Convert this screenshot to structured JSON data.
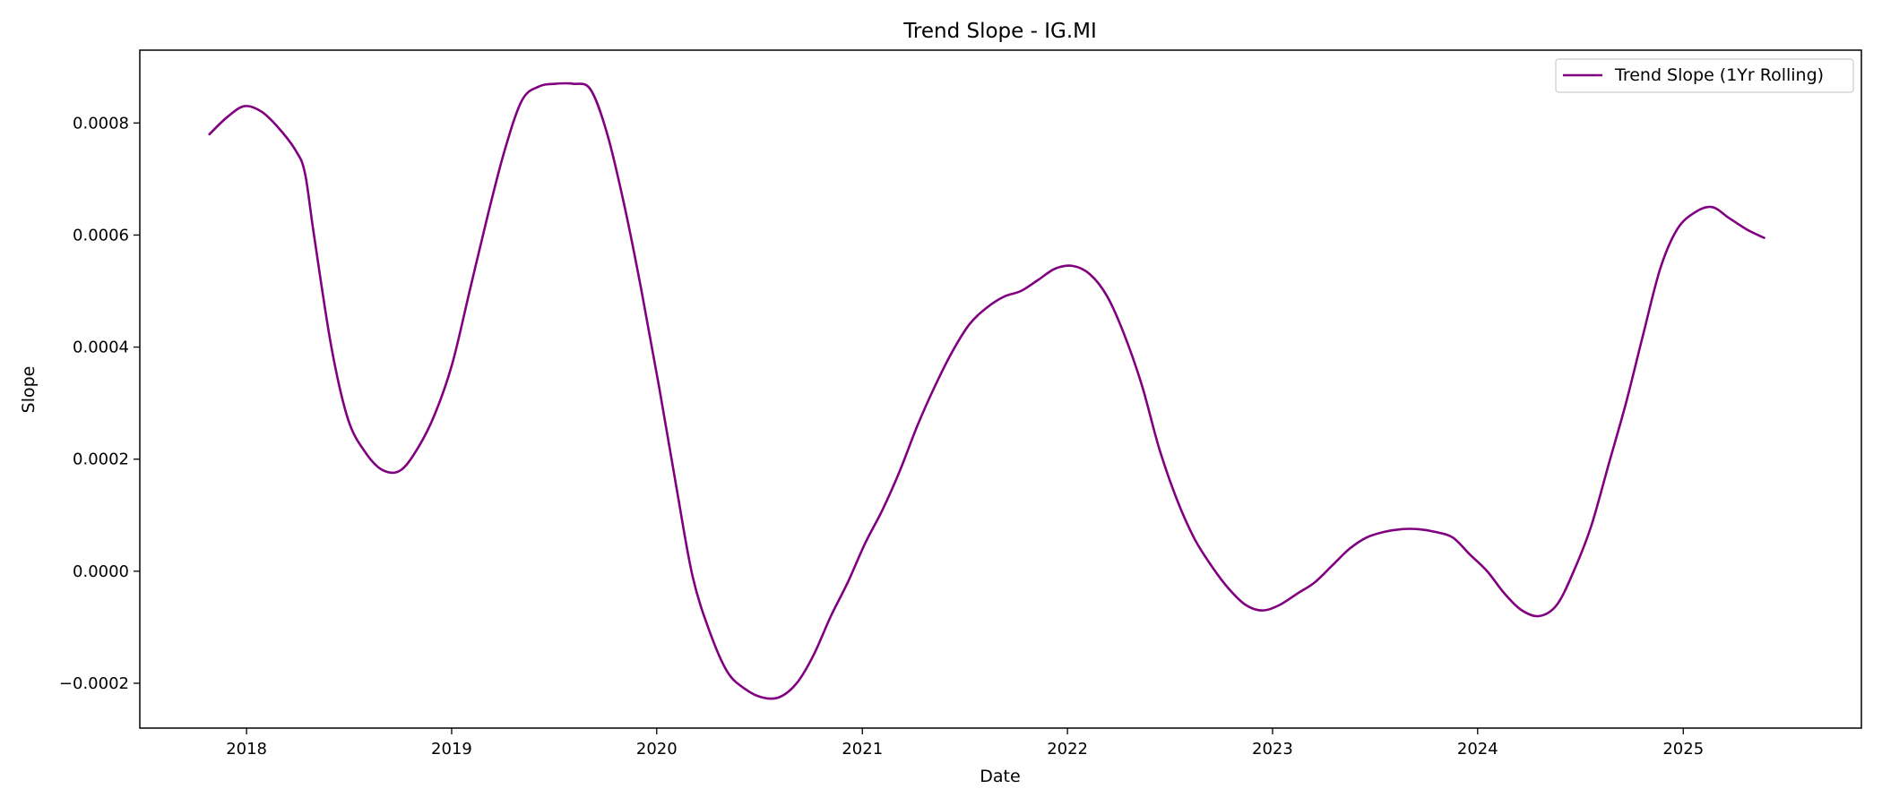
{
  "chart_data": {
    "type": "line",
    "title": "Trend Slope - IG.MI",
    "xlabel": "Date",
    "ylabel": "Slope",
    "xlim": [
      "2017-06-25",
      "2025-11-14"
    ],
    "ylim": [
      -0.00028,
      0.00093
    ],
    "x_ticks": [
      "2018",
      "2019",
      "2020",
      "2021",
      "2022",
      "2023",
      "2024",
      "2025"
    ],
    "y_ticks": [
      "−0.0002",
      "0.0000",
      "0.0002",
      "0.0004",
      "0.0006",
      "0.0008"
    ],
    "grid": false,
    "legend_position": "top-right",
    "series": [
      {
        "name": "Trend Slope (1Yr Rolling)",
        "color": "#800080",
        "points": [
          [
            "2017-10-27",
            0.00078
          ],
          [
            "2017-11-27",
            0.00081
          ],
          [
            "2017-12-28",
            0.00083
          ],
          [
            "2018-01-28",
            0.00082
          ],
          [
            "2018-02-28",
            0.00079
          ],
          [
            "2018-03-30",
            0.00075
          ],
          [
            "2018-04-15",
            0.00071
          ],
          [
            "2018-05-01",
            0.0006
          ],
          [
            "2018-06-01",
            0.0004
          ],
          [
            "2018-07-01",
            0.00027
          ],
          [
            "2018-08-02",
            0.00021
          ],
          [
            "2018-09-01",
            0.00018
          ],
          [
            "2018-10-02",
            0.00018
          ],
          [
            "2018-11-02",
            0.00022
          ],
          [
            "2018-12-02",
            0.00028
          ],
          [
            "2019-01-02",
            0.00037
          ],
          [
            "2019-02-02",
            0.0005
          ],
          [
            "2019-03-05",
            0.00063
          ],
          [
            "2019-04-05",
            0.00075
          ],
          [
            "2019-05-06",
            0.00084
          ],
          [
            "2019-06-05",
            0.000865
          ],
          [
            "2019-07-05",
            0.00087
          ],
          [
            "2019-08-05",
            0.00087
          ],
          [
            "2019-09-05",
            0.00086
          ],
          [
            "2019-10-05",
            0.00078
          ],
          [
            "2019-11-05",
            0.00065
          ],
          [
            "2019-12-05",
            0.0005
          ],
          [
            "2020-01-05",
            0.00033
          ],
          [
            "2020-02-05",
            0.00015
          ],
          [
            "2020-03-05",
            -1e-05
          ],
          [
            "2020-04-05",
            -0.00011
          ],
          [
            "2020-05-06",
            -0.00018
          ],
          [
            "2020-06-06",
            -0.00021
          ],
          [
            "2020-07-06",
            -0.000225
          ],
          [
            "2020-08-06",
            -0.000225
          ],
          [
            "2020-09-06",
            -0.0002
          ],
          [
            "2020-10-06",
            -0.00015
          ],
          [
            "2020-11-06",
            -8e-05
          ],
          [
            "2020-12-06",
            -2e-05
          ],
          [
            "2021-01-06",
            5e-05
          ],
          [
            "2021-02-06",
            0.00011
          ],
          [
            "2021-03-09",
            0.00018
          ],
          [
            "2021-04-09",
            0.00026
          ],
          [
            "2021-05-10",
            0.00033
          ],
          [
            "2021-06-09",
            0.00039
          ],
          [
            "2021-07-10",
            0.00044
          ],
          [
            "2021-08-10",
            0.00047
          ],
          [
            "2021-09-10",
            0.00049
          ],
          [
            "2021-10-10",
            0.0005
          ],
          [
            "2021-11-10",
            0.00052
          ],
          [
            "2021-12-10",
            0.00054
          ],
          [
            "2022-01-10",
            0.000545
          ],
          [
            "2022-02-10",
            0.00053
          ],
          [
            "2022-03-13",
            0.00049
          ],
          [
            "2022-04-13",
            0.00042
          ],
          [
            "2022-05-14",
            0.00033
          ],
          [
            "2022-06-13",
            0.00022
          ],
          [
            "2022-07-14",
            0.00013
          ],
          [
            "2022-08-14",
            6e-05
          ],
          [
            "2022-09-14",
            1e-05
          ],
          [
            "2022-10-14",
            -3e-05
          ],
          [
            "2022-11-14",
            -6e-05
          ],
          [
            "2022-12-14",
            -7e-05
          ],
          [
            "2023-01-14",
            -6e-05
          ],
          [
            "2023-02-14",
            -4e-05
          ],
          [
            "2023-03-17",
            -2e-05
          ],
          [
            "2023-04-17",
            1e-05
          ],
          [
            "2023-05-18",
            4e-05
          ],
          [
            "2023-06-17",
            6e-05
          ],
          [
            "2023-07-18",
            7e-05
          ],
          [
            "2023-08-18",
            7.5e-05
          ],
          [
            "2023-09-18",
            7.5e-05
          ],
          [
            "2023-10-18",
            7e-05
          ],
          [
            "2023-11-18",
            6e-05
          ],
          [
            "2023-12-18",
            3e-05
          ],
          [
            "2024-01-18",
            0.0
          ],
          [
            "2024-02-18",
            -4e-05
          ],
          [
            "2024-03-20",
            -7e-05
          ],
          [
            "2024-04-20",
            -8e-05
          ],
          [
            "2024-05-21",
            -6e-05
          ],
          [
            "2024-06-20",
            0.0
          ],
          [
            "2024-07-21",
            8e-05
          ],
          [
            "2024-08-21",
            0.00019
          ],
          [
            "2024-09-21",
            0.0003
          ],
          [
            "2024-10-21",
            0.00042
          ],
          [
            "2024-11-21",
            0.00054
          ],
          [
            "2024-12-21",
            0.00061
          ],
          [
            "2025-01-21",
            0.00064
          ],
          [
            "2025-02-21",
            0.00065
          ],
          [
            "2025-03-24",
            0.00063
          ],
          [
            "2025-04-24",
            0.00061
          ],
          [
            "2025-05-25",
            0.000595
          ]
        ]
      }
    ]
  }
}
